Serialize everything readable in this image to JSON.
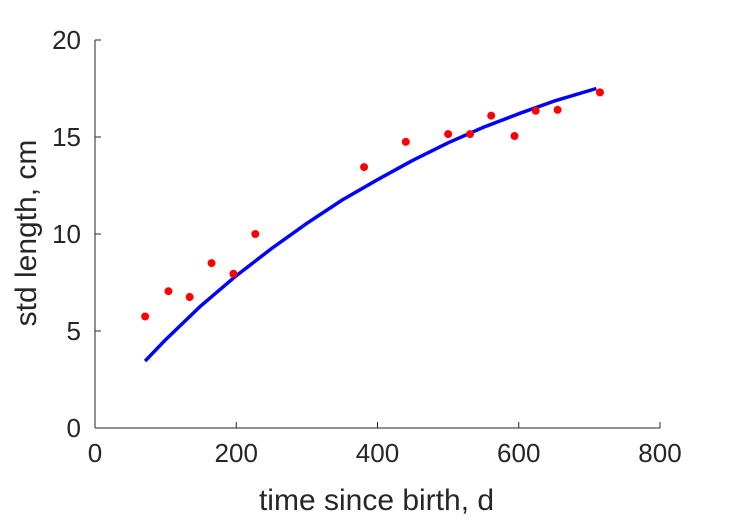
{
  "chart_data": {
    "type": "scatter",
    "title": "",
    "xlabel": "time since birth, d",
    "ylabel": "std length, cm",
    "xlim": [
      0,
      800
    ],
    "ylim": [
      0,
      20
    ],
    "xticks": [
      0,
      200,
      400,
      600,
      800
    ],
    "yticks": [
      0,
      5,
      10,
      15,
      20
    ],
    "xtick_labels": [
      "0",
      "200",
      "400",
      "600",
      "800"
    ],
    "ytick_labels": [
      "0",
      "5",
      "10",
      "15",
      "20"
    ],
    "grid": false,
    "legend": "none",
    "series": [
      {
        "kind": "points",
        "color": "#ff0000",
        "x": [
          71,
          104,
          134,
          165,
          196,
          227,
          381,
          440,
          500,
          531,
          561,
          594,
          624,
          655,
          715
        ],
        "y": [
          5.75,
          7.05,
          6.75,
          8.5,
          7.95,
          10.0,
          13.45,
          14.75,
          15.15,
          15.15,
          16.1,
          15.05,
          16.35,
          16.4,
          17.3
        ]
      },
      {
        "kind": "line",
        "color": "#0000ff",
        "x": [
          71,
          100,
          150,
          200,
          250,
          300,
          350,
          400,
          450,
          500,
          550,
          600,
          650,
          710
        ],
        "y": [
          3.45,
          4.55,
          6.3,
          7.85,
          9.25,
          10.55,
          11.75,
          12.8,
          13.8,
          14.7,
          15.5,
          16.2,
          16.85,
          17.5
        ]
      }
    ]
  }
}
